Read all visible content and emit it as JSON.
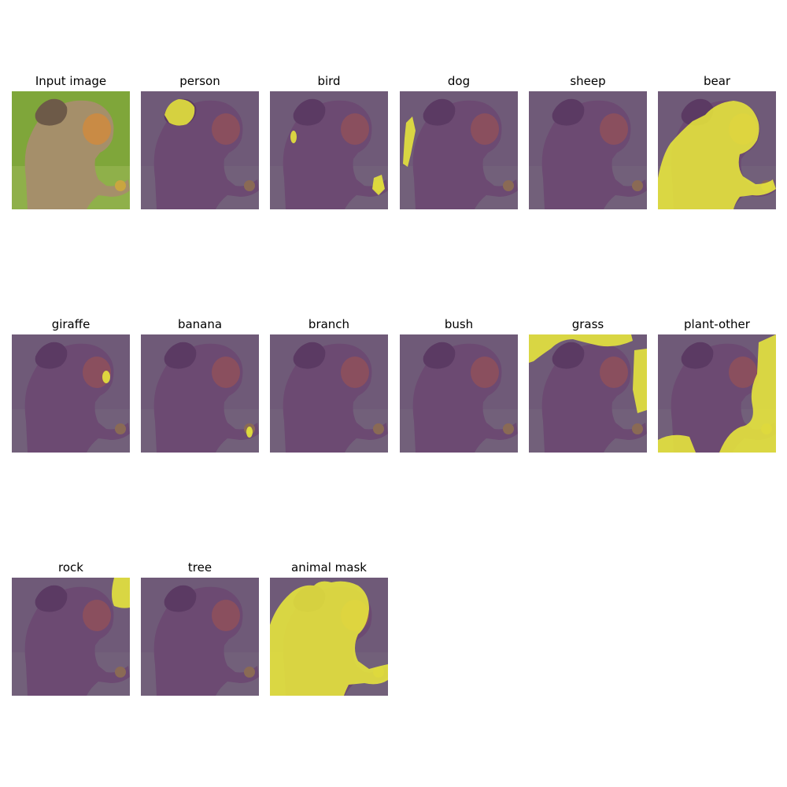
{
  "figure": {
    "background": "#ffffff",
    "overlay_dim_color": "#5a2a6e",
    "mask_color": "#ecec3a",
    "panels": [
      {
        "title": "Input image",
        "kind": "input",
        "mask": "none"
      },
      {
        "title": "person",
        "kind": "mask",
        "mask": "baby-head"
      },
      {
        "title": "bird",
        "kind": "mask",
        "mask": "bird-bits"
      },
      {
        "title": "dog",
        "kind": "mask",
        "mask": "dog-left"
      },
      {
        "title": "sheep",
        "kind": "mask",
        "mask": "none"
      },
      {
        "title": "bear",
        "kind": "mask",
        "mask": "animal-body"
      },
      {
        "title": "giraffe",
        "kind": "mask",
        "mask": "face-spot"
      },
      {
        "title": "banana",
        "kind": "mask",
        "mask": "hand-spot"
      },
      {
        "title": "branch",
        "kind": "mask",
        "mask": "none"
      },
      {
        "title": "bush",
        "kind": "mask",
        "mask": "none"
      },
      {
        "title": "grass",
        "kind": "mask",
        "mask": "grass-top"
      },
      {
        "title": "plant-other",
        "kind": "mask",
        "mask": "plant-right"
      },
      {
        "title": "rock",
        "kind": "mask",
        "mask": "rock-corner"
      },
      {
        "title": "tree",
        "kind": "mask",
        "mask": "none"
      },
      {
        "title": "animal mask",
        "kind": "mask",
        "mask": "animal-full"
      }
    ]
  }
}
